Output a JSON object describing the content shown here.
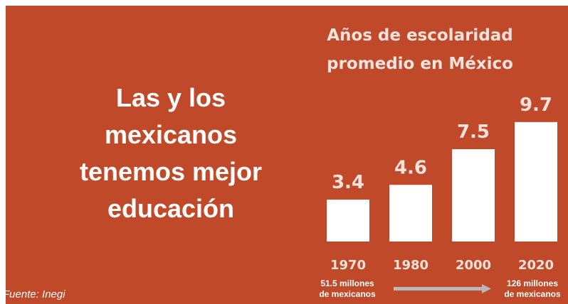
{
  "headline": [
    "Las y los",
    "mexicanos",
    "tenemos mejor",
    "educación"
  ],
  "source": "Fuente: Inegi",
  "population": {
    "start": [
      "51.5 millones",
      "de mexicanos"
    ],
    "end": [
      "126 millones",
      "de mexicanos"
    ]
  },
  "colors": {
    "background": "#c0492a",
    "bars": "#ffffff",
    "arrow": "#b8b8b8"
  },
  "chart_data": {
    "type": "bar",
    "title": "Años de escolaridad promedio en México",
    "title_lines": [
      "Años de escolaridad",
      "promedio en México"
    ],
    "categories": [
      "1970",
      "1980",
      "2000",
      "2020"
    ],
    "values": [
      3.4,
      4.6,
      7.5,
      9.7
    ],
    "value_labels": [
      "3.4",
      "4.6",
      "7.5",
      "9.7"
    ],
    "ylim": [
      0,
      10.5
    ],
    "grid": false,
    "legend": "none"
  }
}
